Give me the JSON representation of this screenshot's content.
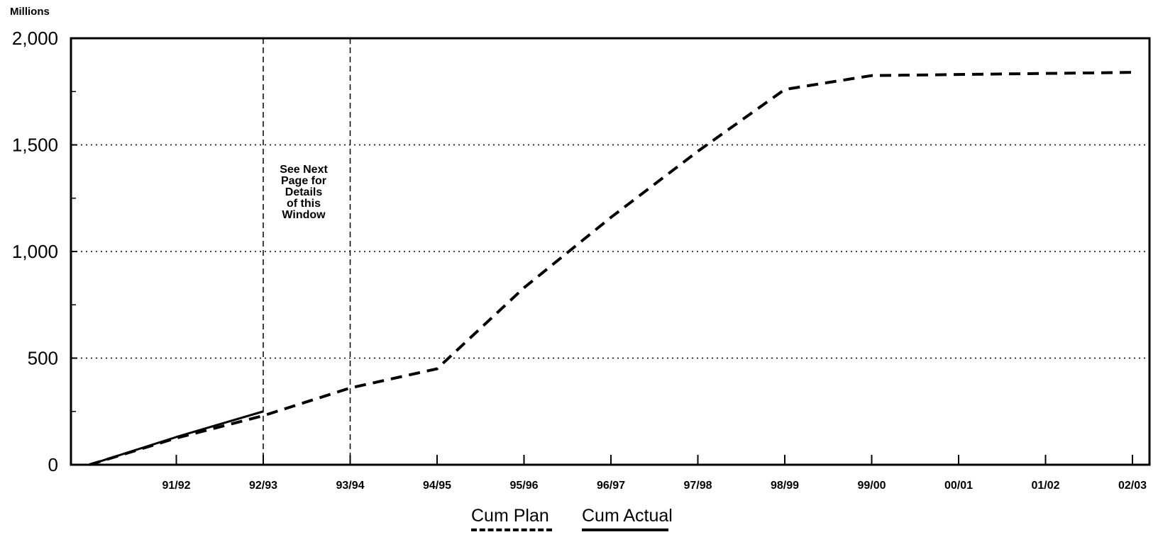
{
  "chart_data": {
    "type": "line",
    "unit_label": "Millions",
    "y_ticks": [
      "0",
      "500",
      "1,000",
      "1,500",
      "2,000"
    ],
    "ylim": [
      0,
      2000
    ],
    "x_ticks": [
      "91/92",
      "92/93",
      "93/94",
      "94/95",
      "95/96",
      "96/97",
      "97/98",
      "98/99",
      "99/00",
      "00/01",
      "01/02",
      "02/03"
    ],
    "grid": "horizontal dotted at 500, 1,000, 1,500",
    "series": [
      {
        "name": "Cum Plan",
        "style": "dashed",
        "x": [
          "90/91",
          "91/92",
          "92/93",
          "93/94",
          "94/95",
          "95/96",
          "96/97",
          "97/98",
          "98/99",
          "99/00",
          "00/01",
          "01/02",
          "02/03"
        ],
        "values": [
          0,
          125,
          230,
          360,
          450,
          830,
          1160,
          1470,
          1760,
          1825,
          1830,
          1835,
          1840
        ]
      },
      {
        "name": "Cum Actual",
        "style": "solid",
        "x": [
          "90/91",
          "91/92",
          "92/93"
        ],
        "values": [
          0,
          130,
          250
        ]
      }
    ],
    "window_lines": [
      "92/93",
      "93/94"
    ],
    "annotation": [
      "See Next",
      "Page for",
      "Details",
      "of this",
      "Window"
    ],
    "legend_position": "bottom-center"
  }
}
